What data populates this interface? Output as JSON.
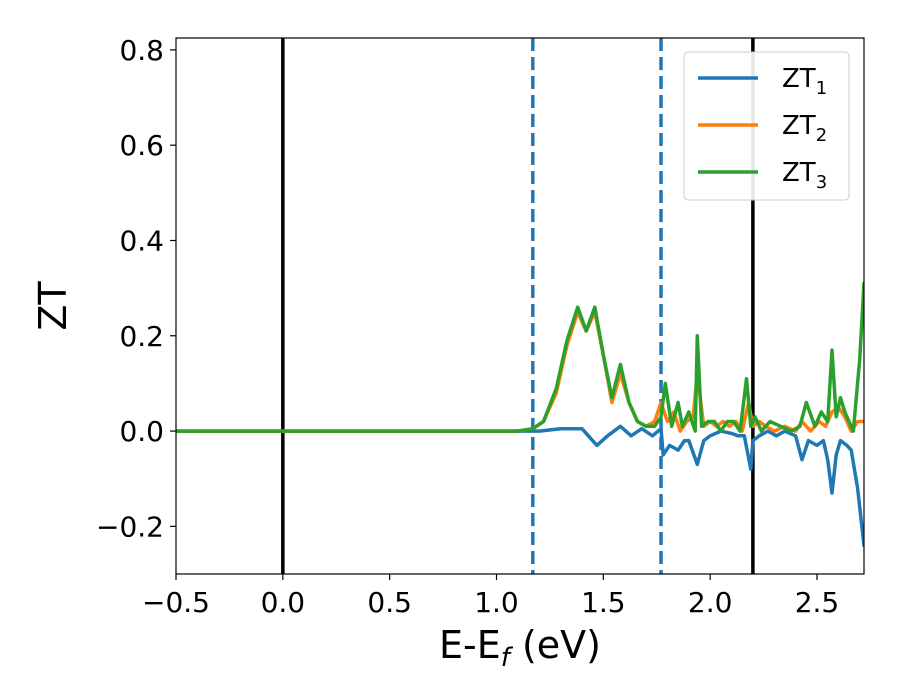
{
  "chart_data": {
    "type": "line",
    "xlabel": "E-E",
    "xlabel_sub": "f",
    "xlabel_unit": " (eV)",
    "ylabel": "ZT",
    "xlim": [
      -0.5,
      2.72
    ],
    "ylim": [
      -0.3,
      0.825
    ],
    "x_ticks": [
      -0.5,
      0.0,
      0.5,
      1.0,
      1.5,
      2.0,
      2.5
    ],
    "x_tick_labels": [
      "−0.5",
      "0.0",
      "0.5",
      "1.0",
      "1.5",
      "2.0",
      "2.5"
    ],
    "y_ticks": [
      -0.2,
      0.0,
      0.2,
      0.4,
      0.6,
      0.8
    ],
    "y_tick_labels": [
      "−0.2",
      "0.0",
      "0.2",
      "0.4",
      "0.6",
      "0.8"
    ],
    "grid": false,
    "legend_position": "top-right",
    "vlines": [
      {
        "x": 0.0,
        "style": "solid",
        "color": "#000000"
      },
      {
        "x": 2.2,
        "style": "solid",
        "color": "#000000"
      },
      {
        "x": 1.17,
        "style": "dashed",
        "color": "#1f77b4"
      },
      {
        "x": 1.77,
        "style": "dashed",
        "color": "#1f77b4"
      }
    ],
    "series": [
      {
        "name": "ZT",
        "name_sub": "1",
        "color": "#1f77b4",
        "x": [
          -0.5,
          1.1,
          1.2,
          1.3,
          1.4,
          1.47,
          1.52,
          1.58,
          1.63,
          1.68,
          1.73,
          1.77,
          1.78,
          1.81,
          1.85,
          1.88,
          1.9,
          1.94,
          1.97,
          2.0,
          2.05,
          2.1,
          2.13,
          2.16,
          2.19,
          2.2,
          2.23,
          2.27,
          2.31,
          2.35,
          2.4,
          2.43,
          2.46,
          2.5,
          2.53,
          2.55,
          2.57,
          2.59,
          2.61,
          2.64,
          2.66,
          2.69,
          2.72
        ],
        "y": [
          0.0,
          0.0,
          0.0,
          0.005,
          0.005,
          -0.03,
          -0.01,
          0.01,
          -0.01,
          0.005,
          -0.01,
          0.005,
          -0.05,
          -0.03,
          -0.04,
          -0.02,
          -0.02,
          -0.07,
          -0.02,
          -0.01,
          0.0,
          -0.005,
          -0.01,
          -0.01,
          -0.08,
          -0.02,
          -0.01,
          0.0,
          -0.01,
          0.0,
          -0.01,
          -0.06,
          -0.02,
          -0.03,
          -0.02,
          -0.06,
          -0.13,
          -0.05,
          -0.02,
          -0.03,
          -0.04,
          -0.12,
          -0.24
        ]
      },
      {
        "name": "ZT",
        "name_sub": "2",
        "color": "#ff7f0e",
        "x": [
          -0.5,
          1.1,
          1.17,
          1.22,
          1.28,
          1.33,
          1.38,
          1.42,
          1.46,
          1.5,
          1.54,
          1.58,
          1.62,
          1.66,
          1.7,
          1.74,
          1.77,
          1.8,
          1.83,
          1.86,
          1.89,
          1.92,
          1.94,
          1.97,
          2.0,
          2.03,
          2.06,
          2.09,
          2.12,
          2.15,
          2.18,
          2.2,
          2.23,
          2.26,
          2.3,
          2.35,
          2.4,
          2.43,
          2.47,
          2.51,
          2.54,
          2.57,
          2.6,
          2.63,
          2.66,
          2.69,
          2.72
        ],
        "y": [
          0.0,
          0.0,
          0.005,
          0.02,
          0.08,
          0.18,
          0.25,
          0.21,
          0.25,
          0.16,
          0.06,
          0.12,
          0.06,
          0.02,
          0.01,
          0.02,
          0.06,
          0.02,
          0.04,
          0.0,
          0.02,
          0.03,
          0.12,
          0.01,
          0.02,
          0.01,
          0.02,
          0.01,
          0.02,
          0.0,
          0.06,
          0.01,
          0.02,
          0.01,
          0.0,
          0.01,
          0.0,
          0.02,
          0.0,
          0.02,
          0.01,
          0.04,
          0.05,
          0.03,
          0.0,
          0.02,
          0.02
        ]
      },
      {
        "name": "ZT",
        "name_sub": "3",
        "color": "#2ca02c",
        "x": [
          -0.5,
          1.1,
          1.17,
          1.22,
          1.28,
          1.33,
          1.38,
          1.42,
          1.46,
          1.5,
          1.54,
          1.58,
          1.62,
          1.66,
          1.7,
          1.74,
          1.77,
          1.79,
          1.82,
          1.85,
          1.87,
          1.9,
          1.93,
          1.94,
          1.96,
          1.99,
          2.02,
          2.05,
          2.08,
          2.11,
          2.14,
          2.17,
          2.19,
          2.21,
          2.24,
          2.28,
          2.33,
          2.38,
          2.42,
          2.45,
          2.49,
          2.52,
          2.55,
          2.57,
          2.59,
          2.61,
          2.63,
          2.65,
          2.67,
          2.7,
          2.72
        ],
        "y": [
          0.0,
          0.0,
          0.005,
          0.02,
          0.09,
          0.19,
          0.26,
          0.21,
          0.26,
          0.16,
          0.07,
          0.14,
          0.06,
          0.02,
          0.01,
          0.01,
          0.03,
          0.1,
          0.01,
          0.06,
          0.01,
          0.04,
          0.0,
          0.2,
          0.01,
          0.02,
          0.02,
          0.0,
          0.02,
          0.02,
          0.0,
          0.11,
          0.01,
          0.03,
          0.0,
          0.02,
          0.01,
          0.0,
          0.01,
          0.06,
          0.01,
          0.04,
          0.02,
          0.17,
          0.03,
          0.07,
          0.04,
          0.02,
          0.0,
          0.15,
          0.31
        ]
      }
    ]
  }
}
